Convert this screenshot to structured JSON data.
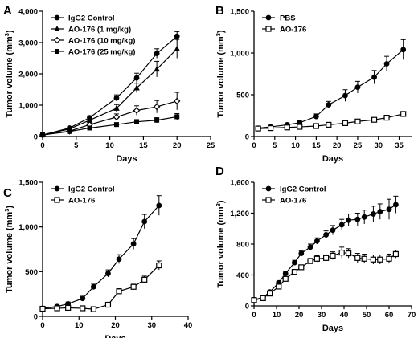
{
  "chart_data": [
    {
      "panel": "A",
      "type": "line",
      "xlabel": "Days",
      "ylabel": "Tumor volume (mm3)",
      "ylabel_main": "Tumor volume (mm",
      "ylabel_sup": "3",
      "ylabel_close": ")",
      "xlim": [
        0,
        25
      ],
      "ylim": [
        0,
        4000
      ],
      "xticks": [
        0,
        5,
        10,
        15,
        20,
        25
      ],
      "yticks": [
        0,
        1000,
        2000,
        3000,
        4000
      ],
      "ytick_labels": [
        "0",
        "1,000",
        "2,000",
        "3,000",
        "4,000"
      ],
      "legend_position": "top-left",
      "x": [
        0,
        4,
        7,
        11,
        14,
        17,
        20
      ],
      "series": [
        {
          "name": "IgG2 Control",
          "marker": "circle-filled",
          "values": [
            50,
            270,
            600,
            1230,
            1870,
            2650,
            3200
          ],
          "errors": [
            0,
            40,
            60,
            100,
            150,
            150,
            150
          ]
        },
        {
          "name": "AO-176 (1 mg/kg)",
          "marker": "triangle-filled",
          "values": [
            50,
            240,
            520,
            900,
            1550,
            2150,
            2800
          ],
          "errors": [
            0,
            40,
            60,
            120,
            150,
            250,
            300
          ]
        },
        {
          "name": "AO-176 (10 mg/kg)",
          "marker": "diamond-open",
          "values": [
            50,
            170,
            380,
            620,
            830,
            950,
            1130
          ],
          "errors": [
            0,
            30,
            50,
            100,
            150,
            200,
            280
          ]
        },
        {
          "name": "AO-176 (25 mg/kg)",
          "marker": "square-filled",
          "values": [
            50,
            160,
            270,
            380,
            470,
            520,
            630
          ],
          "errors": [
            0,
            30,
            40,
            60,
            70,
            80,
            100
          ]
        }
      ]
    },
    {
      "panel": "B",
      "type": "line",
      "xlabel": "Days",
      "ylabel": "Tumor volume (mm3)",
      "ylabel_main": "Tumor volume (mm",
      "ylabel_sup": "3",
      "ylabel_close": ")",
      "xlim": [
        0,
        38
      ],
      "ylim": [
        0,
        1500
      ],
      "xticks": [
        0,
        5,
        10,
        15,
        20,
        25,
        30,
        35
      ],
      "yticks": [
        0,
        500,
        1000,
        1500
      ],
      "ytick_labels": [
        "0",
        "500",
        "1,000",
        "1,500"
      ],
      "legend_position": "top-left",
      "series": [
        {
          "name": "PBS",
          "marker": "circle-filled",
          "x": [
            1,
            4,
            8,
            11,
            15,
            18,
            22,
            25,
            29,
            32,
            36
          ],
          "values": [
            100,
            115,
            140,
            165,
            240,
            380,
            490,
            590,
            710,
            870,
            1040
          ],
          "errors": [
            20,
            20,
            20,
            25,
            30,
            40,
            70,
            70,
            80,
            90,
            120
          ]
        },
        {
          "name": "AO-176",
          "marker": "square-open",
          "x": [
            1,
            4,
            8,
            11,
            15,
            18,
            22,
            25,
            29,
            32,
            36
          ],
          "values": [
            95,
            100,
            108,
            115,
            125,
            140,
            160,
            180,
            200,
            225,
            270
          ],
          "errors": [
            10,
            10,
            10,
            10,
            10,
            12,
            12,
            15,
            15,
            15,
            20
          ]
        }
      ]
    },
    {
      "panel": "C",
      "type": "line",
      "xlabel": "Days",
      "ylabel": "Tumor volume (mm3)",
      "ylabel_main": "Tumor volume (mm",
      "ylabel_sup": "3",
      "ylabel_close": ")",
      "xlim": [
        0,
        40
      ],
      "ylim": [
        0,
        1500
      ],
      "xticks": [
        0,
        10,
        20,
        30,
        40
      ],
      "yticks": [
        0,
        500,
        1000,
        1500
      ],
      "ytick_labels": [
        "0",
        "500",
        "1,000",
        "1,500"
      ],
      "legend_position": "top-left",
      "series": [
        {
          "name": "IgG2 Control",
          "marker": "circle-filled",
          "x": [
            0,
            4,
            7,
            11,
            14,
            18,
            21,
            25,
            28,
            32
          ],
          "values": [
            90,
            110,
            140,
            200,
            330,
            480,
            640,
            810,
            1060,
            1240
          ],
          "errors": [
            20,
            20,
            20,
            25,
            30,
            40,
            50,
            60,
            80,
            110
          ]
        },
        {
          "name": "AO-176",
          "marker": "square-open",
          "x": [
            0,
            4,
            7,
            11,
            14,
            18,
            21,
            25,
            28,
            32
          ],
          "values": [
            85,
            90,
            95,
            90,
            80,
            130,
            280,
            330,
            410,
            570
          ],
          "errors": [
            10,
            10,
            12,
            12,
            12,
            20,
            30,
            30,
            40,
            50
          ]
        }
      ]
    },
    {
      "panel": "D",
      "type": "line",
      "xlabel": "Days",
      "ylabel": "Tumor volume (mm3)",
      "ylabel_main": "Tumor volume (mm",
      "ylabel_sup": "3",
      "ylabel_close": ")",
      "xlim": [
        0,
        70
      ],
      "ylim": [
        0,
        1600
      ],
      "xticks": [
        0,
        10,
        20,
        30,
        40,
        50,
        60,
        70
      ],
      "yticks": [
        0,
        400,
        800,
        1200,
        1600
      ],
      "ytick_labels": [
        "0",
        "400",
        "800",
        "1,200",
        "1,600"
      ],
      "legend_position": "top-left",
      "series": [
        {
          "name": "IgG2 Control",
          "marker": "circle-filled",
          "x": [
            0,
            4,
            7,
            11,
            14,
            18,
            21,
            25,
            28,
            32,
            35,
            39,
            42,
            46,
            49,
            53,
            56,
            60,
            63
          ],
          "values": [
            80,
            110,
            180,
            300,
            420,
            560,
            680,
            760,
            840,
            920,
            980,
            1050,
            1110,
            1120,
            1150,
            1190,
            1220,
            1250,
            1310
          ],
          "errors": [
            10,
            10,
            20,
            20,
            25,
            30,
            30,
            40,
            40,
            50,
            60,
            70,
            80,
            80,
            90,
            100,
            100,
            130,
            110
          ]
        },
        {
          "name": "AO-176",
          "marker": "square-open",
          "x": [
            0,
            4,
            7,
            11,
            14,
            18,
            21,
            25,
            28,
            32,
            35,
            39,
            42,
            46,
            49,
            53,
            56,
            60,
            63
          ],
          "values": [
            75,
            100,
            160,
            250,
            350,
            440,
            500,
            580,
            610,
            620,
            650,
            690,
            680,
            620,
            610,
            600,
            600,
            610,
            670
          ],
          "errors": [
            10,
            10,
            15,
            20,
            20,
            25,
            30,
            35,
            40,
            40,
            50,
            70,
            60,
            60,
            60,
            60,
            60,
            60,
            50
          ]
        }
      ]
    }
  ]
}
